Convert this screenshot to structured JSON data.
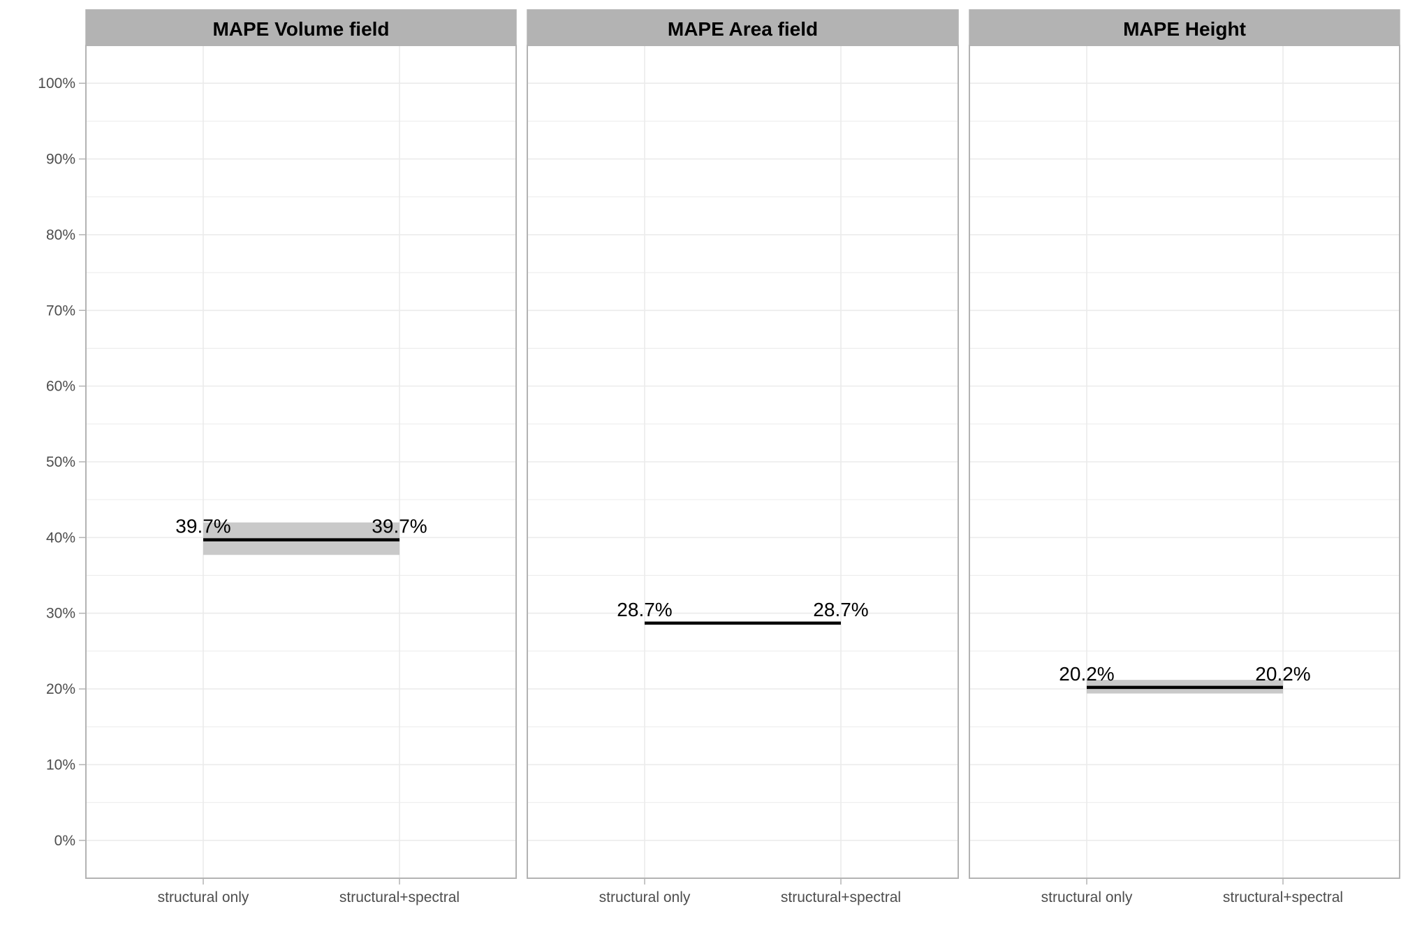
{
  "chart_data": {
    "type": "line",
    "categories": [
      "structural only",
      "structural+spectral"
    ],
    "ylim": [
      -5,
      105
    ],
    "yticks": [
      0,
      10,
      20,
      30,
      40,
      50,
      60,
      70,
      80,
      90,
      100
    ],
    "ytick_labels": [
      "0%",
      "10%",
      "20%",
      "30%",
      "40%",
      "50%",
      "60%",
      "70%",
      "80%",
      "90%",
      "100%"
    ],
    "grid": true,
    "colors": {
      "strip_bg": "#b3b3b3",
      "line": "#000000",
      "ribbon": "#bfbfbf",
      "grid": "#ebebeb",
      "border": "#b3b3b3"
    },
    "panels": [
      {
        "title": "MAPE Volume field",
        "values": [
          39.7,
          39.7
        ],
        "lower": [
          37.7,
          37.7
        ],
        "upper": [
          42.0,
          42.0
        ],
        "labels": [
          "39.7%",
          "39.7%"
        ]
      },
      {
        "title": "MAPE Area field",
        "values": [
          28.7,
          28.7
        ],
        "lower": [
          28.6,
          28.6
        ],
        "upper": [
          28.8,
          28.8
        ],
        "labels": [
          "28.7%",
          "28.7%"
        ]
      },
      {
        "title": "MAPE Height",
        "values": [
          20.2,
          20.2
        ],
        "lower": [
          19.4,
          19.4
        ],
        "upper": [
          21.2,
          21.2
        ],
        "labels": [
          "20.2%",
          "20.2%"
        ]
      }
    ]
  }
}
